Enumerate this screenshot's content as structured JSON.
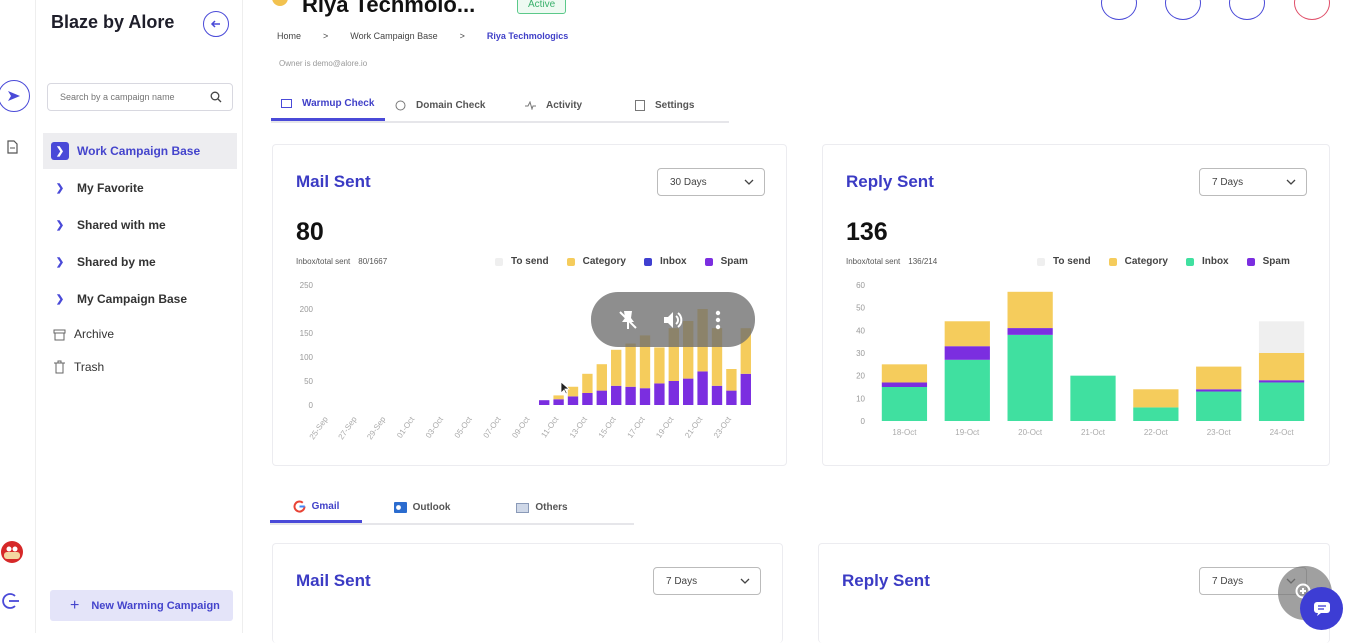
{
  "sidebar": {
    "brand": "Blaze by Alore",
    "search_placeholder": "Search by a campaign name",
    "items": [
      {
        "label": "Work Campaign Base",
        "active": true
      },
      {
        "label": "My Favorite"
      },
      {
        "label": "Shared with me"
      },
      {
        "label": "Shared by me"
      },
      {
        "label": "My Campaign Base"
      }
    ],
    "archive": "Archive",
    "trash": "Trash",
    "new_campaign": "New Warming Campaign"
  },
  "header": {
    "title": "Riya Techmolo...",
    "status": "Active",
    "breadcrumb": [
      "Home",
      "Work Campaign Base",
      "Riya Techmologics"
    ],
    "owner": "Owner is demo@alore.io"
  },
  "tabs": [
    "Warmup Check",
    "Domain Check",
    "Activity",
    "Settings"
  ],
  "colors": {
    "accent": "#4a4ad8",
    "to_send": "#efefef",
    "category": "#f5cc5c",
    "inbox_blue": "#4040d0",
    "inbox_green": "#40e0a0",
    "spam": "#7b2ee0"
  },
  "mail_sent": {
    "title": "Mail Sent",
    "period": "30 Days",
    "value": "80",
    "ratio_label": "Inbox/total sent",
    "ratio_value": "80/1667",
    "legend": [
      "To send",
      "Category",
      "Inbox",
      "Spam"
    ]
  },
  "reply_sent": {
    "title": "Reply Sent",
    "period": "7 Days",
    "value": "136",
    "ratio_label": "Inbox/total sent",
    "ratio_value": "136/214",
    "legend": [
      "To send",
      "Category",
      "Inbox",
      "Spam"
    ]
  },
  "providers": [
    "Gmail",
    "Outlook",
    "Others"
  ],
  "bottom_cards": {
    "left_title": "Mail Sent",
    "left_period": "7 Days",
    "right_title": "Reply Sent",
    "right_period": "7 Days"
  },
  "chart_data": [
    {
      "type": "bar",
      "stacked": true,
      "categories": [
        "25-Sep",
        "26-Sep",
        "27-Sep",
        "28-Sep",
        "29-Sep",
        "30-Sep",
        "01-Oct",
        "02-Oct",
        "03-Oct",
        "04-Oct",
        "05-Oct",
        "06-Oct",
        "07-Oct",
        "08-Oct",
        "09-Oct",
        "10-Oct",
        "11-Oct",
        "12-Oct",
        "13-Oct",
        "14-Oct",
        "15-Oct",
        "16-Oct",
        "17-Oct",
        "18-Oct",
        "19-Oct",
        "20-Oct",
        "21-Oct",
        "22-Oct",
        "23-Oct",
        "24-Oct"
      ],
      "tick_labels": [
        "25-Sep",
        "27-Sep",
        "29-Sep",
        "01-Oct",
        "03-Oct",
        "05-Oct",
        "07-Oct",
        "09-Oct",
        "11-Oct",
        "13-Oct",
        "15-Oct",
        "17-Oct",
        "19-Oct",
        "21-Oct",
        "23-Oct"
      ],
      "y_ticks": [
        0,
        50,
        100,
        150,
        200,
        250
      ],
      "ylim": [
        0,
        250
      ],
      "series": [
        {
          "name": "Spam",
          "values": [
            0,
            0,
            0,
            0,
            0,
            0,
            0,
            0,
            0,
            0,
            0,
            0,
            0,
            0,
            0,
            10,
            12,
            18,
            25,
            30,
            40,
            38,
            35,
            45,
            50,
            55,
            70,
            40,
            30,
            65
          ]
        },
        {
          "name": "Category",
          "values": [
            0,
            0,
            0,
            0,
            0,
            0,
            0,
            0,
            0,
            0,
            0,
            0,
            0,
            0,
            0,
            0,
            8,
            20,
            40,
            55,
            75,
            90,
            110,
            75,
            110,
            120,
            130,
            120,
            45,
            95
          ]
        },
        {
          "name": "Inbox",
          "values": [
            0,
            0,
            0,
            0,
            0,
            0,
            0,
            0,
            0,
            0,
            0,
            0,
            0,
            0,
            0,
            0,
            0,
            0,
            0,
            0,
            0,
            0,
            0,
            0,
            0,
            0,
            0,
            0,
            0,
            0
          ]
        },
        {
          "name": "To send",
          "values": [
            0,
            0,
            0,
            0,
            0,
            0,
            0,
            0,
            0,
            0,
            0,
            0,
            0,
            0,
            0,
            0,
            0,
            0,
            0,
            0,
            0,
            0,
            0,
            0,
            0,
            0,
            0,
            0,
            0,
            0
          ]
        }
      ]
    },
    {
      "type": "bar",
      "stacked": true,
      "categories": [
        "18-Oct",
        "19-Oct",
        "20-Oct",
        "21-Oct",
        "22-Oct",
        "23-Oct",
        "24-Oct"
      ],
      "y_ticks": [
        0,
        10,
        20,
        30,
        40,
        50,
        60
      ],
      "ylim": [
        0,
        60
      ],
      "series": [
        {
          "name": "Inbox",
          "values": [
            15,
            27,
            38,
            20,
            6,
            13,
            17
          ]
        },
        {
          "name": "Spam",
          "values": [
            2,
            6,
            3,
            0,
            0,
            1,
            1
          ]
        },
        {
          "name": "Category",
          "values": [
            8,
            11,
            16,
            0,
            8,
            10,
            12
          ]
        },
        {
          "name": "To send",
          "values": [
            0,
            0,
            0,
            0,
            0,
            0,
            14
          ]
        }
      ]
    }
  ]
}
